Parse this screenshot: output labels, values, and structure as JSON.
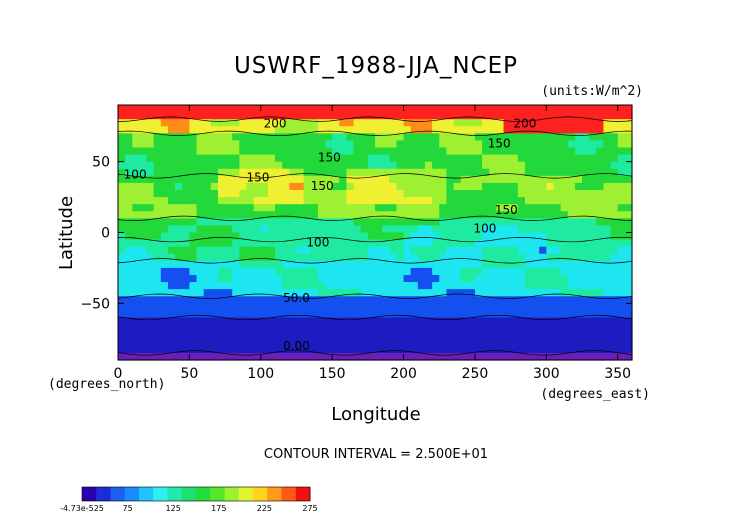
{
  "chart_data": {
    "type": "heatmap",
    "title": "USWRF_1988-JJA_NCEP",
    "units_label": "(units:W/m^2)",
    "xlabel": "Longitude",
    "ylabel": "Latitude",
    "x_unit_label": "(degrees_east)",
    "y_unit_label": "(degrees_north)",
    "xlim": [
      0,
      360
    ],
    "ylim": [
      -90,
      90
    ],
    "x_ticks": [
      0,
      50,
      100,
      150,
      200,
      250,
      300,
      350
    ],
    "x_tick_labels": [
      "0",
      "50",
      "100",
      "150",
      "200",
      "250",
      "300",
      "350"
    ],
    "y_ticks": [
      50,
      0,
      -50
    ],
    "y_tick_labels": [
      "50",
      "0",
      "−50"
    ],
    "contour_interval_text": "CONTOUR INTERVAL = 2.500E+01",
    "contour_labels": [
      {
        "text": "200",
        "lon": 110,
        "lat": 74
      },
      {
        "text": "150",
        "lon": 148,
        "lat": 50
      },
      {
        "text": "100",
        "lon": 12,
        "lat": 38
      },
      {
        "text": "150",
        "lon": 98,
        "lat": 36
      },
      {
        "text": "150",
        "lon": 143,
        "lat": 30
      },
      {
        "text": "150",
        "lon": 267,
        "lat": 60
      },
      {
        "text": "150",
        "lon": 272,
        "lat": 13
      },
      {
        "text": "100",
        "lon": 257,
        "lat": 0
      },
      {
        "text": "100",
        "lon": 140,
        "lat": -10
      },
      {
        "text": "50.0",
        "lon": 125,
        "lat": -49
      },
      {
        "text": "0.00",
        "lon": 125,
        "lat": -83
      },
      {
        "text": "200",
        "lon": 285,
        "lat": 74
      }
    ],
    "zonal_band_values": [
      {
        "lat_from": 90,
        "lat_to": 80,
        "value": 230
      },
      {
        "lat_from": 80,
        "lat_to": 70,
        "value": 185
      },
      {
        "lat_from": 70,
        "lat_to": 40,
        "value": 140
      },
      {
        "lat_from": 40,
        "lat_to": 10,
        "value": 150
      },
      {
        "lat_from": 10,
        "lat_to": -5,
        "value": 120
      },
      {
        "lat_from": -5,
        "lat_to": -20,
        "value": 115
      },
      {
        "lat_from": -20,
        "lat_to": -45,
        "value": 90
      },
      {
        "lat_from": -45,
        "lat_to": -60,
        "value": 50
      },
      {
        "lat_from": -60,
        "lat_to": -85,
        "value": 25
      },
      {
        "lat_from": -85,
        "lat_to": -90,
        "value": 0
      }
    ],
    "colorbar": {
      "labels": [
        "-4.73e-525",
        "75",
        "125",
        "175",
        "225",
        "275"
      ],
      "colors": [
        "#2b00b0",
        "#1f2bd8",
        "#1e5ff0",
        "#1a8cff",
        "#20c4ff",
        "#2ef0f0",
        "#22e8b0",
        "#1ee070",
        "#25dc3a",
        "#55e62a",
        "#9af032",
        "#e0f530",
        "#ffd21c",
        "#ff9a1a",
        "#ff5a14",
        "#f01010"
      ]
    },
    "palette": {
      "purple": "#6a1fb8",
      "navy": "#1c1cc0",
      "blue": "#1450f0",
      "cyan": "#1ee6f0",
      "teal": "#1eeba0",
      "green": "#22d83a",
      "lime": "#9ef032",
      "yellow": "#f0f032",
      "orange": "#ff8c18",
      "red": "#ff2020"
    }
  }
}
